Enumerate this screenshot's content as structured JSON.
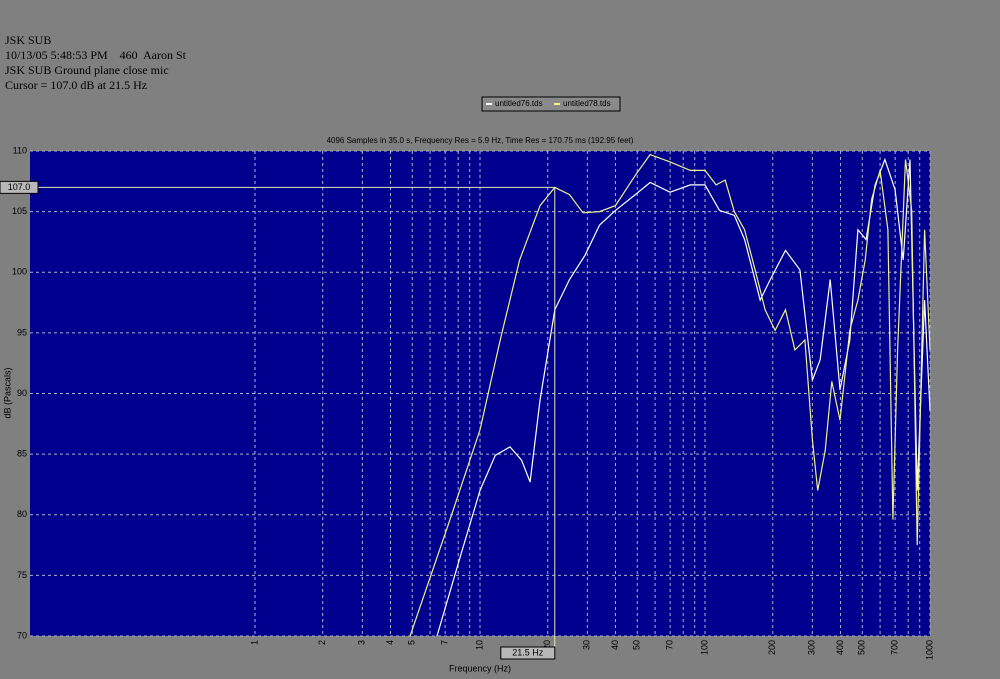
{
  "header": [
    "JSK SUB",
    "10/13/05 5:48:53 PM    460  Aaron St",
    "JSK SUB Ground plane close mic",
    "Cursor = 107.0 dB at 21.5 Hz"
  ],
  "chart_data": {
    "type": "line",
    "subtitle": "4096 Samples in 35.0 s, Frequency Res = 5.9 Hz, Time Res = 170.75 ms (192.95 feet)",
    "x_label": "Frequency (Hz)",
    "y_label": "dB (Pascals)",
    "log_x": true,
    "grid": true,
    "xlim": [
      0.1,
      1000
    ],
    "ylim": [
      70,
      110
    ],
    "xticks": [
      1,
      2,
      3,
      4,
      5,
      7,
      10,
      20,
      30,
      40,
      50,
      70,
      100,
      200,
      300,
      400,
      500,
      700,
      1000
    ],
    "x_minor_ticks": [
      6,
      8,
      9,
      60,
      80,
      90,
      600,
      800,
      900
    ],
    "yticks": [
      70,
      75,
      80,
      85,
      90,
      95,
      100,
      105,
      110
    ],
    "cursor": {
      "x": 21.5,
      "y": 107,
      "x_label": "21.5 Hz",
      "y_label": "107.0"
    },
    "series": [
      {
        "name": "untitled76.tds",
        "color": "#ffffff",
        "x": [
          6.44,
          8.1,
          10,
          11.7,
          13.6,
          15.3,
          16.7,
          18.5,
          21.5,
          25,
          29.3,
          34,
          40,
          49,
          57,
          70,
          86,
          100,
          116,
          135,
          150,
          176,
          195,
          228,
          264,
          300,
          325,
          360,
          398,
          440,
          478,
          520,
          570,
          630,
          700,
          760,
          815,
          877,
          946,
          1000
        ],
        "values": [
          70,
          76.3,
          82,
          84.9,
          85.6,
          84.5,
          82.7,
          89.5,
          96.9,
          99.4,
          101.4,
          103.9,
          105.1,
          106.4,
          107.4,
          106.6,
          107.2,
          107.2,
          105.1,
          104.7,
          102.7,
          97.7,
          99.4,
          101.8,
          100.2,
          91.1,
          92.8,
          99.4,
          90.3,
          94.4,
          103.5,
          102.7,
          107.2,
          109.3,
          106.8,
          101,
          109.3,
          82,
          97.7,
          88.6
        ]
      },
      {
        "name": "untitled78.tds",
        "color": "#f0f08c",
        "x": [
          4.89,
          7.36,
          10,
          12.3,
          15,
          18.5,
          21.5,
          25,
          28.7,
          34,
          40,
          49,
          57,
          70,
          86,
          100,
          112,
          123,
          135,
          150,
          167,
          185,
          205,
          228,
          251,
          278,
          300,
          317,
          342,
          366,
          398,
          440,
          478,
          515,
          550,
          600,
          650,
          684,
          718,
          778,
          829,
          877,
          946,
          1000
        ],
        "values": [
          70,
          79.6,
          87,
          94.4,
          101,
          105.5,
          107,
          106.4,
          104.9,
          105,
          105.5,
          108,
          109.7,
          109.1,
          108.4,
          108.4,
          107.2,
          107.6,
          105,
          103.5,
          100.2,
          96.9,
          95.2,
          96.9,
          93.6,
          94.4,
          86.2,
          82,
          85.3,
          91,
          87.8,
          95.2,
          97.7,
          101,
          106,
          108.4,
          103.5,
          79.6,
          93.6,
          109.3,
          105.1,
          77.5,
          103.5,
          93.6
        ]
      }
    ]
  }
}
